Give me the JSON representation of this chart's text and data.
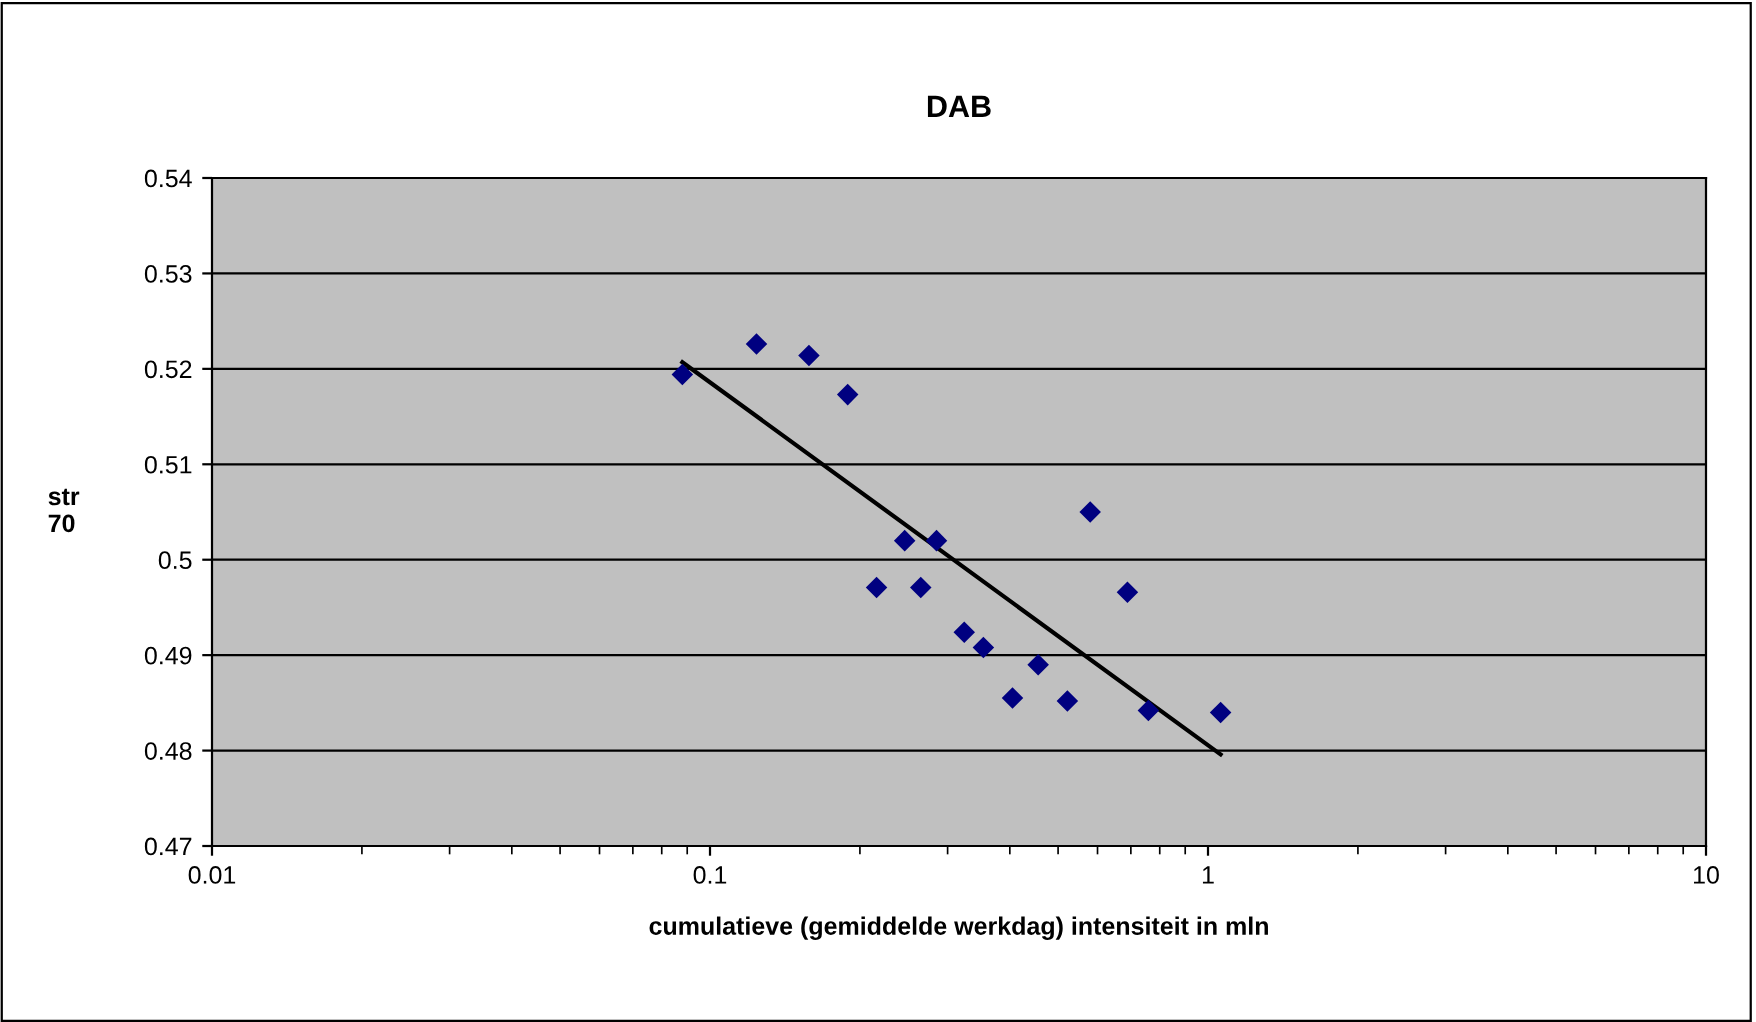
{
  "chart_data": {
    "type": "scatter",
    "title": "DAB",
    "xlabel": "cumulatieve (gemiddelde werkdag) intensiteit in mln",
    "ylabel": "str\n70",
    "log": "x",
    "xlim": [
      0.01,
      10
    ],
    "xticks": [
      0.01,
      0.1,
      1,
      10
    ],
    "ylim": [
      0.47,
      0.54
    ],
    "yticks": [
      0.47,
      0.48,
      0.49,
      0.5,
      0.51,
      0.52,
      0.53,
      0.54
    ],
    "grid": "y",
    "series": [
      {
        "color": "#000080",
        "marker": "diamond",
        "x": [
          0.088,
          0.124,
          0.158,
          0.189,
          0.246,
          0.285,
          0.216,
          0.265,
          0.324,
          0.354,
          0.456,
          0.405,
          0.522,
          0.58,
          0.689,
          0.759,
          1.06
        ],
        "values": [
          0.5194,
          0.5226,
          0.5214,
          0.5173,
          0.502,
          0.502,
          0.4971,
          0.4971,
          0.4924,
          0.4908,
          0.489,
          0.4855,
          0.4852,
          0.505,
          0.4966,
          0.4842,
          0.484
        ]
      },
      {
        "type": "line",
        "color": "#000000",
        "marker": "none",
        "line_style": "solid",
        "x": [
          0.088,
          1.06
        ],
        "values": [
          0.5207,
          0.4796
        ]
      }
    ]
  }
}
